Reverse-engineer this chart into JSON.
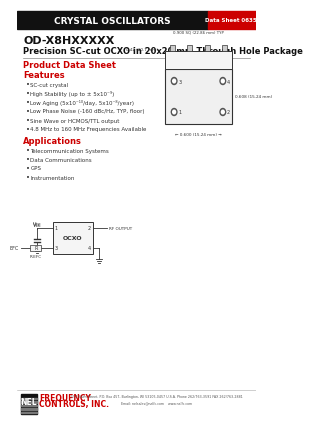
{
  "header_text": "CRYSTAL OSCILLATORS",
  "datasheet_num": "Data Sheet 06350",
  "title_line1": "OD-X8HXXXXX",
  "title_line2": "Precision SC-cut OCXO in 20x20 mm Through Hole Package",
  "section1": "Product Data Sheet",
  "section2_title": "Features",
  "features": [
    "SC-cut crystal",
    "High Stability (up to ± 5x10⁻⁹)",
    "Low Aging (5x10⁻¹⁰/day, 5x10⁻⁸/year)",
    "Low Phase Noise (-160 dBc/Hz, TYP, floor)",
    "Sine Wave or HCMOS/TTL output",
    "4.8 MHz to 160 MHz Frequencies Available"
  ],
  "section3_title": "Applications",
  "applications": [
    "Telecommunication Systems",
    "Data Communications",
    "GPS",
    "Instrumentation"
  ],
  "footer_address": "557 Balm Street, P.O. Box 457, Burlington, WI 53105-0457 U.S.A. Phone 262/763-3591 FAX 262/763-2881",
  "footer_email": "Email: nelsales@nelfc.com    www.nelfc.com",
  "company_name_line1": "FREQUENCY",
  "company_name_line2": "CONTROLS, INC.",
  "bg_color": "#ffffff",
  "header_bg": "#111111",
  "header_text_color": "#ffffff",
  "datasheet_bg": "#cc0000",
  "datasheet_text_color": "#ffffff",
  "title_color": "#111111",
  "section_color": "#cc0000",
  "body_color": "#333333",
  "bullet_color": "#333333"
}
